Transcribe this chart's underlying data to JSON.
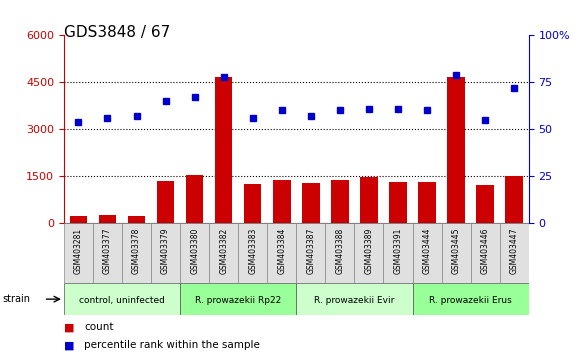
{
  "title": "GDS3848 / 67",
  "samples": [
    "GSM403281",
    "GSM403377",
    "GSM403378",
    "GSM403379",
    "GSM403380",
    "GSM403382",
    "GSM403383",
    "GSM403384",
    "GSM403387",
    "GSM403388",
    "GSM403389",
    "GSM403391",
    "GSM403444",
    "GSM403445",
    "GSM403446",
    "GSM403447"
  ],
  "counts": [
    220,
    250,
    240,
    1350,
    1530,
    4680,
    1250,
    1380,
    1280,
    1380,
    1460,
    1320,
    1310,
    4680,
    1220,
    1500
  ],
  "percentiles": [
    54,
    56,
    57,
    65,
    67,
    78,
    56,
    60,
    57,
    60,
    61,
    61,
    60,
    79,
    55,
    72
  ],
  "groups": [
    {
      "label": "control, uninfected",
      "start": 0,
      "end": 4,
      "color": "#ccffcc"
    },
    {
      "label": "R. prowazekii Rp22",
      "start": 4,
      "end": 8,
      "color": "#99ff99"
    },
    {
      "label": "R. prowazekii Evir",
      "start": 8,
      "end": 12,
      "color": "#ccffcc"
    },
    {
      "label": "R. prowazekii Erus",
      "start": 12,
      "end": 16,
      "color": "#99ff99"
    }
  ],
  "left_ylim": [
    0,
    6000
  ],
  "right_ylim": [
    0,
    100
  ],
  "left_yticks": [
    0,
    1500,
    3000,
    4500,
    6000
  ],
  "right_yticks": [
    0,
    25,
    50,
    75,
    100
  ],
  "bar_color": "#cc0000",
  "dot_color": "#0000cc",
  "title_color": "#000000",
  "left_tick_color": "#cc0000",
  "right_tick_color": "#0000cc",
  "strain_label": "strain",
  "legend_count_label": "count",
  "legend_percentile_label": "percentile rank within the sample"
}
